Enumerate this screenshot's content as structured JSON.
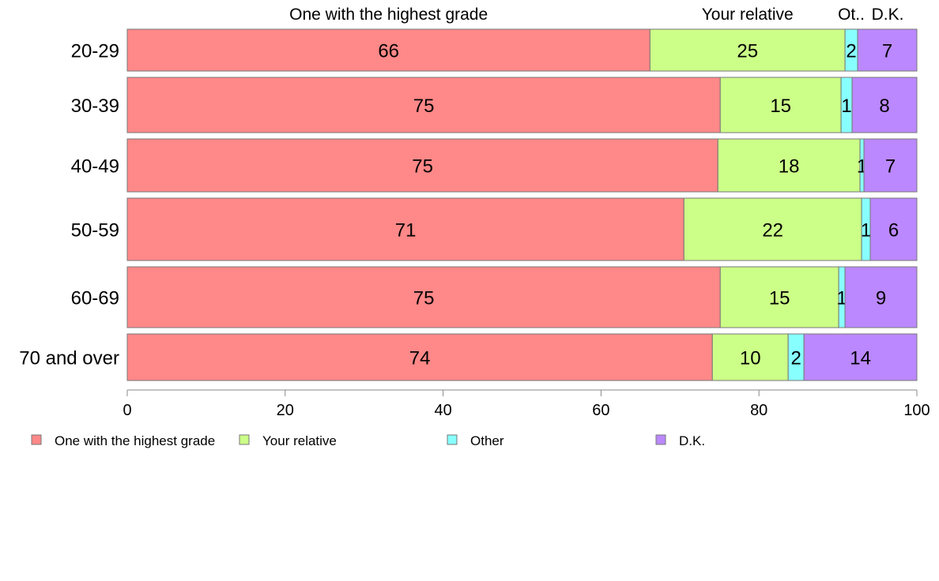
{
  "chart_data": {
    "type": "bar",
    "orientation": "horizontal",
    "stacked": true,
    "categories": [
      "20-29",
      "30-39",
      "40-49",
      "50-59",
      "60-69",
      "70 and over"
    ],
    "series": [
      {
        "name": "One with the highest grade",
        "color": "#ff8888",
        "values": [
          66.2,
          75.1,
          74.8,
          70.5,
          75.1,
          74.1
        ],
        "labels": [
          "66",
          "75",
          "75",
          "71",
          "75",
          "74"
        ]
      },
      {
        "name": "Your relative",
        "color": "#ccff88",
        "values": [
          24.7,
          15.3,
          18.0,
          22.5,
          15.0,
          9.6
        ],
        "labels": [
          "25",
          "15",
          "18",
          "22",
          "15",
          "10"
        ]
      },
      {
        "name": "Other",
        "color": "#88ffff",
        "values": [
          1.6,
          1.4,
          0.5,
          1.1,
          0.8,
          2.0
        ],
        "labels": [
          "2",
          "1",
          "1",
          "1",
          "1",
          "2"
        ]
      },
      {
        "name": "D.K.",
        "color": "#bb88ff",
        "values": [
          7.5,
          8.2,
          6.7,
          5.9,
          9.1,
          14.3
        ],
        "labels": [
          "7",
          "8",
          "7",
          "6",
          "9",
          "14"
        ]
      }
    ],
    "top_labels": [
      "One with the highest grade",
      "Your relative",
      "Ot..",
      "D.K."
    ],
    "xlim": [
      0,
      100
    ],
    "xticks": [
      0,
      20,
      40,
      60,
      80,
      100
    ],
    "grid": false,
    "legend_position": "bottom"
  }
}
